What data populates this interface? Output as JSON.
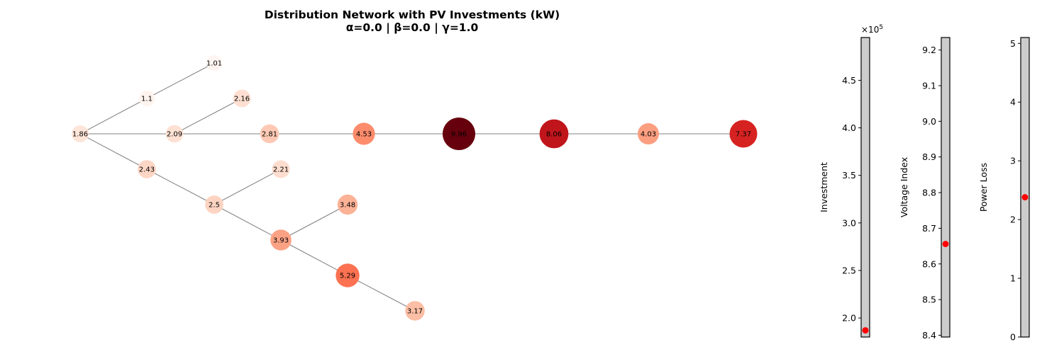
{
  "title": {
    "line1": "Distribution Network with PV Investments (kW)",
    "line2": "α=0.0 | β=0.0 | γ=1.0"
  },
  "network": {
    "nodes": [
      {
        "id": "n1",
        "label": "1.86",
        "value": 1.86
      },
      {
        "id": "n2",
        "label": "1.1",
        "value": 1.1
      },
      {
        "id": "n3",
        "label": "1.01",
        "value": 1.01
      },
      {
        "id": "n4",
        "label": "2.09",
        "value": 2.09
      },
      {
        "id": "n5",
        "label": "2.16",
        "value": 2.16
      },
      {
        "id": "n6",
        "label": "2.81",
        "value": 2.81
      },
      {
        "id": "n7",
        "label": "4.53",
        "value": 4.53
      },
      {
        "id": "n8",
        "label": "9.96",
        "value": 9.96
      },
      {
        "id": "n9",
        "label": "8.06",
        "value": 8.06
      },
      {
        "id": "n10",
        "label": "4.03",
        "value": 4.03
      },
      {
        "id": "n11",
        "label": "7.37",
        "value": 7.37
      },
      {
        "id": "n12",
        "label": "2.43",
        "value": 2.43
      },
      {
        "id": "n13",
        "label": "2.5",
        "value": 2.5
      },
      {
        "id": "n14",
        "label": "2.21",
        "value": 2.21
      },
      {
        "id": "n15",
        "label": "3.93",
        "value": 3.93
      },
      {
        "id": "n16",
        "label": "3.48",
        "value": 3.48
      },
      {
        "id": "n17",
        "label": "5.29",
        "value": 5.29
      },
      {
        "id": "n18",
        "label": "3.17",
        "value": 3.17
      }
    ],
    "edges": [
      [
        "n1",
        "n2"
      ],
      [
        "n2",
        "n3"
      ],
      [
        "n1",
        "n4"
      ],
      [
        "n4",
        "n5"
      ],
      [
        "n4",
        "n6"
      ],
      [
        "n6",
        "n7"
      ],
      [
        "n7",
        "n8"
      ],
      [
        "n8",
        "n9"
      ],
      [
        "n9",
        "n10"
      ],
      [
        "n10",
        "n11"
      ],
      [
        "n1",
        "n12"
      ],
      [
        "n12",
        "n13"
      ],
      [
        "n13",
        "n14"
      ],
      [
        "n13",
        "n15"
      ],
      [
        "n15",
        "n16"
      ],
      [
        "n15",
        "n17"
      ],
      [
        "n17",
        "n18"
      ]
    ],
    "edge_color": "#808080",
    "colormap": "Reds"
  },
  "gauges": [
    {
      "name": "investment",
      "label": "Investment",
      "sci_label": "×10",
      "sci_exp": "5",
      "range": [
        1.8,
        4.95
      ],
      "ticks": [
        "2.0",
        "2.5",
        "3.0",
        "3.5",
        "4.0",
        "4.5"
      ],
      "tick_values": [
        2.0,
        2.5,
        3.0,
        3.5,
        4.0,
        4.5
      ],
      "marker_value": 1.87
    },
    {
      "name": "voltage-index",
      "label": "Voltage Index",
      "range": [
        8.395,
        9.235
      ],
      "ticks": [
        "8.4",
        "8.5",
        "8.6",
        "8.7",
        "8.8",
        "8.9",
        "9.0",
        "9.1",
        "9.2"
      ],
      "tick_values": [
        8.4,
        8.5,
        8.6,
        8.7,
        8.8,
        8.9,
        9.0,
        9.1,
        9.2
      ],
      "marker_value": 8.656
    },
    {
      "name": "power-loss",
      "label": "Power Loss",
      "range": [
        0,
        5.1
      ],
      "ticks": [
        "0",
        "1",
        "2",
        "3",
        "4",
        "5"
      ],
      "tick_values": [
        0,
        1,
        2,
        3,
        4,
        5
      ],
      "marker_value": 2.38
    }
  ],
  "colors": {
    "marker": "#ff0000",
    "gauge_fill": "#cccccc",
    "gauge_border": "#000000"
  }
}
